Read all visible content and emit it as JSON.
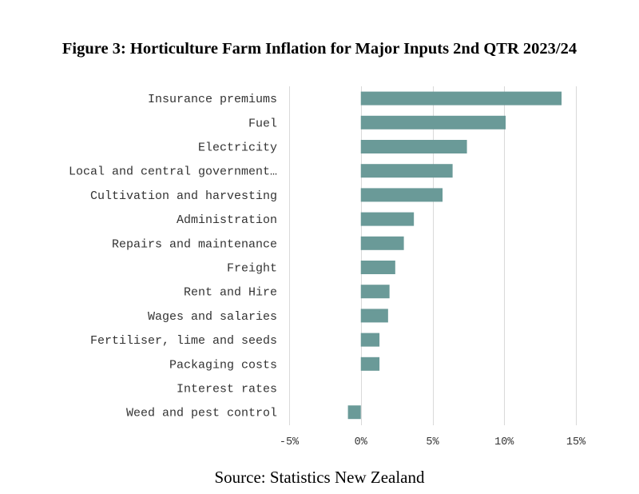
{
  "figure": {
    "title": "Figure 3: Horticulture Farm Inflation for Major Inputs 2nd QTR 2023/24",
    "source": "Source: Statistics New Zealand"
  },
  "chart_data": {
    "type": "bar",
    "orientation": "horizontal",
    "title": "Figure 3: Horticulture Farm Inflation for Major Inputs 2nd QTR 2023/24",
    "xlabel": "",
    "ylabel": "",
    "categories": [
      "Insurance premiums",
      "Fuel",
      "Electricity",
      "Local and central government…",
      "Cultivation and harvesting",
      "Administration",
      "Repairs and maintenance",
      "Freight",
      "Rent and Hire",
      "Wages and salaries",
      "Fertiliser, lime and seeds",
      "Packaging costs",
      "Interest rates",
      "Weed and pest control"
    ],
    "values": [
      14.0,
      10.1,
      7.4,
      6.4,
      5.7,
      3.7,
      3.0,
      2.4,
      2.0,
      1.9,
      1.3,
      1.3,
      0.0,
      -0.9
    ],
    "unit": "%",
    "xlim": [
      -5,
      15
    ],
    "ticks": [
      -5,
      0,
      5,
      10,
      15
    ],
    "tick_labels": [
      "-5%",
      "0%",
      "5%",
      "10%",
      "15%"
    ],
    "grid": true,
    "legend": "none",
    "bar_color": "#6a9a98"
  }
}
